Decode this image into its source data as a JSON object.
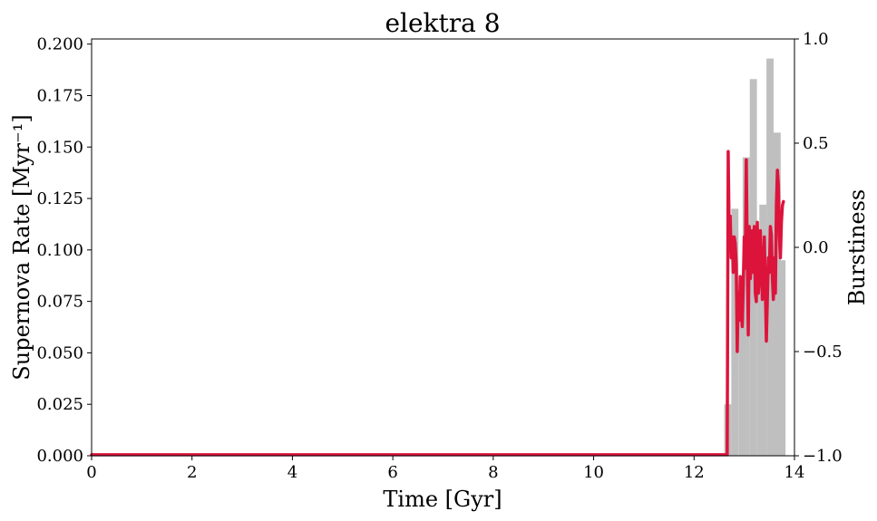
{
  "chart_data": {
    "type": "bar",
    "title": "elektra 8",
    "xlabel": "Time [Gyr]",
    "ylabel": "Supernova Rate [Myr⁻¹]",
    "y2label": "Burstiness",
    "xlim": [
      0,
      14
    ],
    "ylim": [
      0,
      0.2025
    ],
    "y2lim": [
      -1.0,
      1.0
    ],
    "xticks": [
      0,
      2,
      4,
      6,
      8,
      10,
      12,
      14
    ],
    "yticks": [
      0.0,
      0.025,
      0.05,
      0.075,
      0.1,
      0.125,
      0.15,
      0.175,
      0.2
    ],
    "ytick_labels": [
      "0.000",
      "0.025",
      "0.050",
      "0.075",
      "0.100",
      "0.125",
      "0.150",
      "0.175",
      "0.200"
    ],
    "y2ticks": [
      -1.0,
      -0.5,
      0.0,
      0.5,
      1.0
    ],
    "y2tick_labels": [
      "−1.0",
      "−0.5",
      "0.0",
      "0.5",
      "1.0"
    ],
    "grid": false,
    "histogram": {
      "color": "#bfbfbf",
      "bin_width": 0.142,
      "bins": [
        {
          "x": 12.6,
          "value": 0.025
        },
        {
          "x": 12.742,
          "value": 0.12
        },
        {
          "x": 12.884,
          "value": 0.08
        },
        {
          "x": 12.968,
          "value": 0.145
        },
        {
          "x": 13.11,
          "value": 0.183
        },
        {
          "x": 13.252,
          "value": 0.104
        },
        {
          "x": 13.3,
          "value": 0.122
        },
        {
          "x": 13.442,
          "value": 0.193
        },
        {
          "x": 13.584,
          "value": 0.157
        },
        {
          "x": 13.68,
          "value": 0.095
        }
      ]
    },
    "burstiness": {
      "color": "#dc143c",
      "x": [
        0,
        12.62,
        12.64,
        12.66,
        12.68,
        12.7,
        12.72,
        12.74,
        12.76,
        12.78,
        12.8,
        12.82,
        12.84,
        12.86,
        12.88,
        12.9,
        12.92,
        12.94,
        12.96,
        12.98,
        13.0,
        13.02,
        13.04,
        13.06,
        13.08,
        13.1,
        13.12,
        13.14,
        13.16,
        13.18,
        13.2,
        13.22,
        13.24,
        13.26,
        13.28,
        13.3,
        13.32,
        13.34,
        13.36,
        13.38,
        13.4,
        13.42,
        13.44,
        13.46,
        13.48,
        13.5,
        13.52,
        13.54,
        13.56,
        13.58,
        13.6,
        13.62,
        13.64,
        13.66,
        13.68,
        13.7,
        13.72,
        13.74,
        13.76,
        13.78
      ],
      "y": [
        -0.995,
        -0.995,
        -0.995,
        -0.995,
        0.46,
        0.05,
        0.15,
        -0.05,
        0.05,
        -0.12,
        0.05,
        0.02,
        -0.08,
        -0.5,
        -0.22,
        -0.35,
        -0.14,
        -0.3,
        -0.38,
        -0.18,
        0.05,
        -0.1,
        0.42,
        -0.05,
        -0.42,
        0.1,
        -0.15,
        -0.08,
        0.08,
        -0.12,
        0.1,
        -0.22,
        -0.26,
        0.12,
        -0.22,
        -0.15,
        0.08,
        -0.05,
        -0.25,
        -0.22,
        0.05,
        -0.2,
        -0.45,
        -0.25,
        -0.05,
        -0.12,
        0.1,
        0.06,
        -0.15,
        -0.25,
        -0.05,
        -0.22,
        0.2,
        0.37,
        0.3,
        0.05,
        -0.05,
        0.12,
        0.2,
        0.22
      ]
    }
  }
}
